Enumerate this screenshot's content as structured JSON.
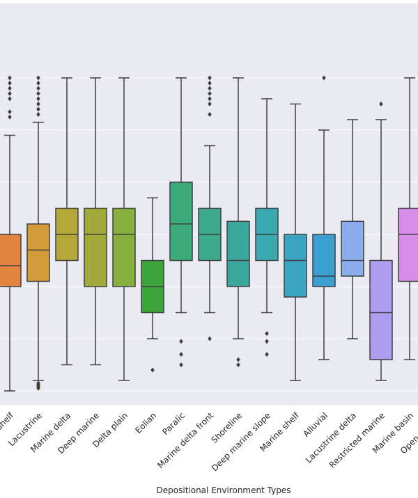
{
  "chart_data": {
    "type": "box",
    "title": "",
    "xlabel": "Depositional Environment Types",
    "ylabel": "",
    "grid": true,
    "colors": {
      "background": "#eaeaf2",
      "grid": "#ffffff",
      "box_edge": "#3f3f3f"
    },
    "categories": [
      {
        "label": "Shelf",
        "color": "#e1853f",
        "whisker_low": 0.0,
        "q1": 4.0,
        "median": 4.8,
        "q3": 6.0,
        "whisker_high": 9.8,
        "fliers": [
          10.5,
          10.7,
          11.2,
          11.4,
          11.6,
          11.8,
          12.0
        ]
      },
      {
        "label": "Lacustrine",
        "color": "#d49c38",
        "whisker_low": 0.4,
        "q1": 4.2,
        "median": 5.4,
        "q3": 6.4,
        "whisker_high": 10.3,
        "fliers": [
          0.1,
          0.15,
          0.2,
          0.25,
          0.3,
          10.6,
          10.8,
          11.0,
          11.2,
          11.4,
          11.6,
          11.8,
          12.0
        ]
      },
      {
        "label": "Marine delta",
        "color": "#b5a83b",
        "whisker_low": 1.0,
        "q1": 5.0,
        "median": 6.0,
        "q3": 7.0,
        "whisker_high": 12.0,
        "fliers": []
      },
      {
        "label": "Deep marine",
        "color": "#a2ab3a",
        "whisker_low": 1.0,
        "q1": 4.0,
        "median": 6.0,
        "q3": 7.0,
        "whisker_high": 12.0,
        "fliers": []
      },
      {
        "label": "Delta plain",
        "color": "#86af3d",
        "whisker_low": 0.4,
        "q1": 4.0,
        "median": 6.0,
        "q3": 7.0,
        "whisker_high": 12.0,
        "fliers": []
      },
      {
        "label": "Eolian",
        "color": "#3ba43a",
        "whisker_low": 2.0,
        "q1": 3.0,
        "median": 4.0,
        "q3": 5.0,
        "whisker_high": 7.4,
        "fliers": [
          0.8
        ]
      },
      {
        "label": "Paralic",
        "color": "#3daa7c",
        "whisker_low": 3.0,
        "q1": 5.0,
        "median": 6.4,
        "q3": 8.0,
        "whisker_high": 12.0,
        "fliers": [
          1.0,
          1.4,
          1.9
        ]
      },
      {
        "label": "Marine delta front",
        "color": "#3eaa8c",
        "whisker_low": 3.0,
        "q1": 5.0,
        "median": 6.0,
        "q3": 7.0,
        "whisker_high": 9.4,
        "fliers": [
          2.0,
          10.6,
          11.0,
          11.2,
          11.4,
          11.6,
          11.8,
          12.0
        ]
      },
      {
        "label": "Shoreline",
        "color": "#3aa89c",
        "whisker_low": 2.0,
        "q1": 4.0,
        "median": 5.0,
        "q3": 6.5,
        "whisker_high": 12.0,
        "fliers": [
          1.0,
          1.2
        ]
      },
      {
        "label": "Deep marine slope",
        "color": "#3aa9b0",
        "whisker_low": 3.0,
        "q1": 5.0,
        "median": 6.0,
        "q3": 7.0,
        "whisker_high": 11.2,
        "fliers": [
          1.4,
          1.9,
          2.2
        ]
      },
      {
        "label": "Marine shelf",
        "color": "#3aa4c1",
        "whisker_low": 0.4,
        "q1": 3.6,
        "median": 5.0,
        "q3": 6.0,
        "whisker_high": 11.0,
        "fliers": []
      },
      {
        "label": "Alluvial",
        "color": "#3aa0d2",
        "whisker_low": 1.2,
        "q1": 4.0,
        "median": 4.4,
        "q3": 6.0,
        "whisker_high": 10.0,
        "fliers": [
          12.0
        ]
      },
      {
        "label": "Lacustrine delta",
        "color": "#8aadeb",
        "whisker_low": 2.0,
        "q1": 4.4,
        "median": 5.0,
        "q3": 6.5,
        "whisker_high": 10.4,
        "fliers": []
      },
      {
        "label": "Restricted marine",
        "color": "#ad9cf0",
        "whisker_low": 0.4,
        "q1": 1.2,
        "median": 3.0,
        "q3": 5.0,
        "whisker_high": 10.4,
        "fliers": [
          11.0
        ]
      },
      {
        "label": "Marine basin",
        "color": "#d78ce9",
        "whisker_low": 1.2,
        "q1": 4.2,
        "median": 6.0,
        "q3": 7.0,
        "whisker_high": 12.0,
        "fliers": []
      },
      {
        "label": "Open marine",
        "color": "#e88ac3",
        "whisker_low": 1.0,
        "q1": 4.0,
        "median": 5.0,
        "q3": 6.0,
        "whisker_high": 10.0,
        "fliers": []
      }
    ],
    "gridline_values": [
      0,
      2,
      4,
      6,
      8,
      10,
      12
    ]
  }
}
